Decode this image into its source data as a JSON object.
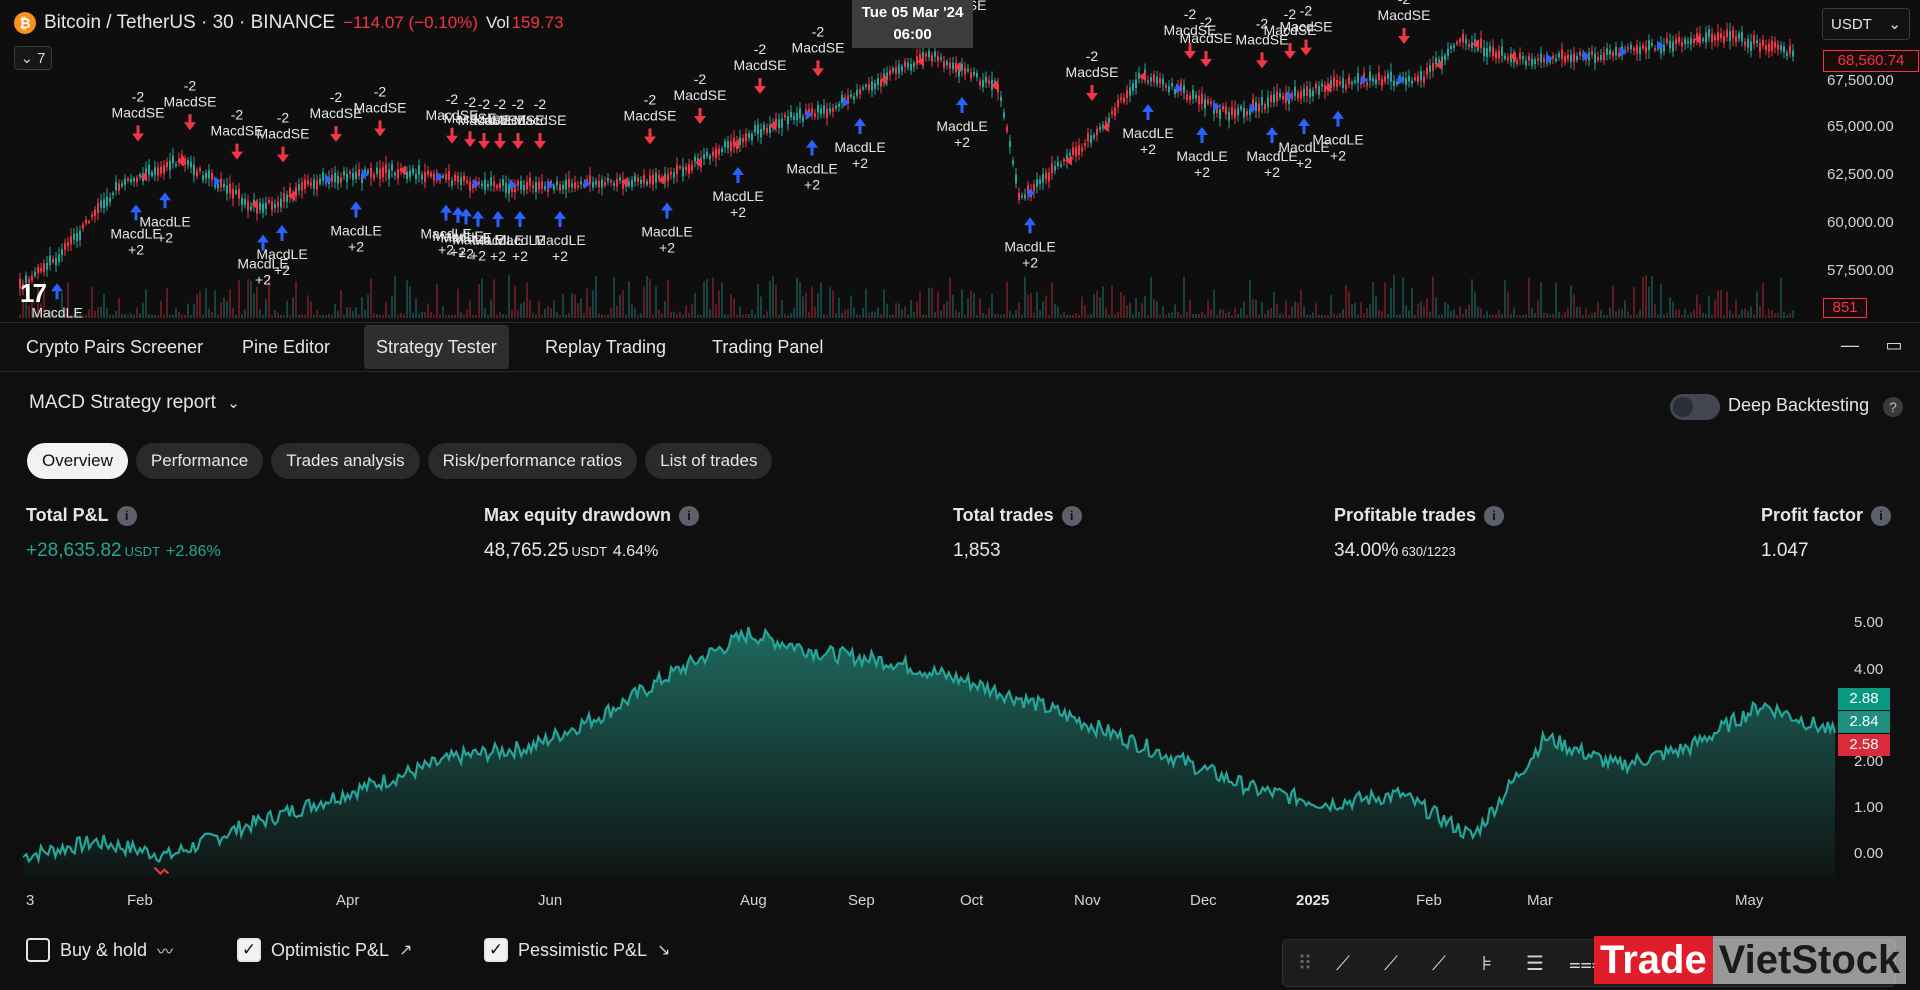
{
  "chart_header": {
    "symbol": "Bitcoin / TetherUS · 30 · BINANCE",
    "btc_icon": "₿",
    "change": "−114.07 (−0.10%)",
    "volume_label": "Vol",
    "volume_value": "159.73",
    "collapse_count": "7",
    "tooltip_date": "Tue 05 Mar '24",
    "tooltip_time": "06:00",
    "currency": "USDT",
    "tv_logo": "17"
  },
  "price_axis": {
    "last_price": "68,560.74",
    "ticks": [
      "67,500.00",
      "65,000.00",
      "62,500.00",
      "60,000.00",
      "57,500.00"
    ],
    "volume_last": "851"
  },
  "signal_text": {
    "short_label": "MacdSE",
    "short_qty": "-2",
    "long_label": "MacdLE",
    "long_qty": "+2",
    "overlap_1": "MaMacdLE",
    "overlap_2": "MaMacMacMacdLE",
    "overlap_3": "MacdMacdLMacdLE",
    "overlap_4": "-2-2-2",
    "overlap_5": "MaMacdMacdSE",
    "overlap_6": "MacMacdSE",
    "overlap_7": "MacdSMacdSE",
    "overlap_8": "+2+2+2"
  },
  "panel_tabs": [
    "Crypto Pairs Screener",
    "Pine Editor",
    "Strategy Tester",
    "Replay Trading",
    "Trading Panel"
  ],
  "panel_active": "Strategy Tester",
  "report": {
    "title": "MACD Strategy report",
    "deep_backtesting": "Deep Backtesting",
    "help": "?"
  },
  "sub_tabs": [
    "Overview",
    "Performance",
    "Trades analysis",
    "Risk/performance ratios",
    "List of trades"
  ],
  "metrics": {
    "total_pl": {
      "label": "Total P&L",
      "value": "+28,635.82",
      "unit": "USDT",
      "pct": "+2.86%"
    },
    "max_dd": {
      "label": "Max equity drawdown",
      "value": "48,765.25",
      "unit": "USDT",
      "pct": "4.64%"
    },
    "total_trades": {
      "label": "Total trades",
      "value": "1,853"
    },
    "profitable": {
      "label": "Profitable trades",
      "value": "34.00%",
      "ratio": "630/1223"
    },
    "profit_factor": {
      "label": "Profit factor",
      "value": "1.047"
    }
  },
  "chart_data": {
    "type": "area",
    "title": "",
    "xlabel": "",
    "ylabel": "",
    "x_ticks": [
      "3",
      "Feb",
      "Apr",
      "Jun",
      "Aug",
      "Sep",
      "Oct",
      "Nov",
      "Dec",
      "2025",
      "Feb",
      "Mar",
      "May"
    ],
    "y_ticks": [
      "5.00",
      "4.00",
      "2.00",
      "1.00",
      "0.00"
    ],
    "ylim": [
      0,
      5.5
    ],
    "badges": {
      "optimistic": "2.88",
      "current": "2.84",
      "pessimistic": "2.58"
    },
    "series": [
      {
        "name": "Equity",
        "x": [
          0,
          4,
          8,
          12,
          16,
          20,
          24,
          28,
          32,
          36,
          40,
          44,
          48,
          52,
          56,
          60,
          64,
          68,
          72,
          76,
          80,
          84,
          88,
          92,
          96,
          100
        ],
        "values": [
          0.3,
          0.6,
          0.3,
          0.9,
          1.4,
          1.9,
          2.4,
          2.6,
          3.3,
          4.2,
          5.0,
          4.6,
          4.4,
          4.0,
          3.5,
          2.9,
          2.3,
          1.7,
          1.4,
          1.6,
          0.7,
          2.8,
          2.2,
          2.6,
          3.5,
          2.9
        ]
      }
    ],
    "colors": {
      "line": "#26a69a",
      "fill_top": "#1f6f63",
      "fill_bottom": "#0f1615",
      "pessimistic": "#f23645"
    }
  },
  "legend": {
    "buy_hold": "Buy & hold",
    "optimistic": "Optimistic P&L",
    "pessimistic": "Pessimistic P&L"
  },
  "watermark": {
    "red": "Trade",
    "dark": "VietStock"
  },
  "colors": {
    "up": "#26a69a",
    "down": "#f23645",
    "long_arrow": "#2962ff",
    "short_arrow": "#f23645"
  }
}
